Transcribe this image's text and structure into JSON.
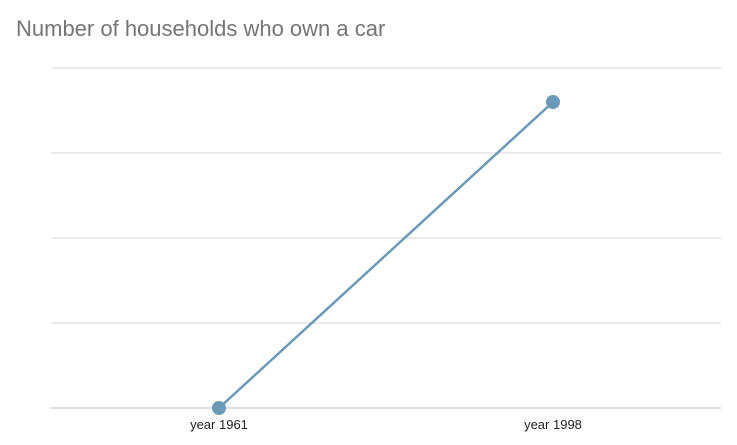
{
  "title": "Number of households who own a car",
  "colors": {
    "series": "#6a9ab5",
    "gridline": "#d4d4d4",
    "baseline": "#bdbdbd",
    "title": "#757575"
  },
  "chart_data": {
    "type": "line",
    "title": "Number of households who own a car",
    "xlabel": "",
    "ylabel": "",
    "categories": [
      "year 1961",
      "year 1998"
    ],
    "series": [
      {
        "values": [
          0,
          3.6
        ]
      }
    ],
    "ylim": [
      0,
      4
    ],
    "y_ticks_labeled": false,
    "grid": true,
    "legend": "none"
  }
}
